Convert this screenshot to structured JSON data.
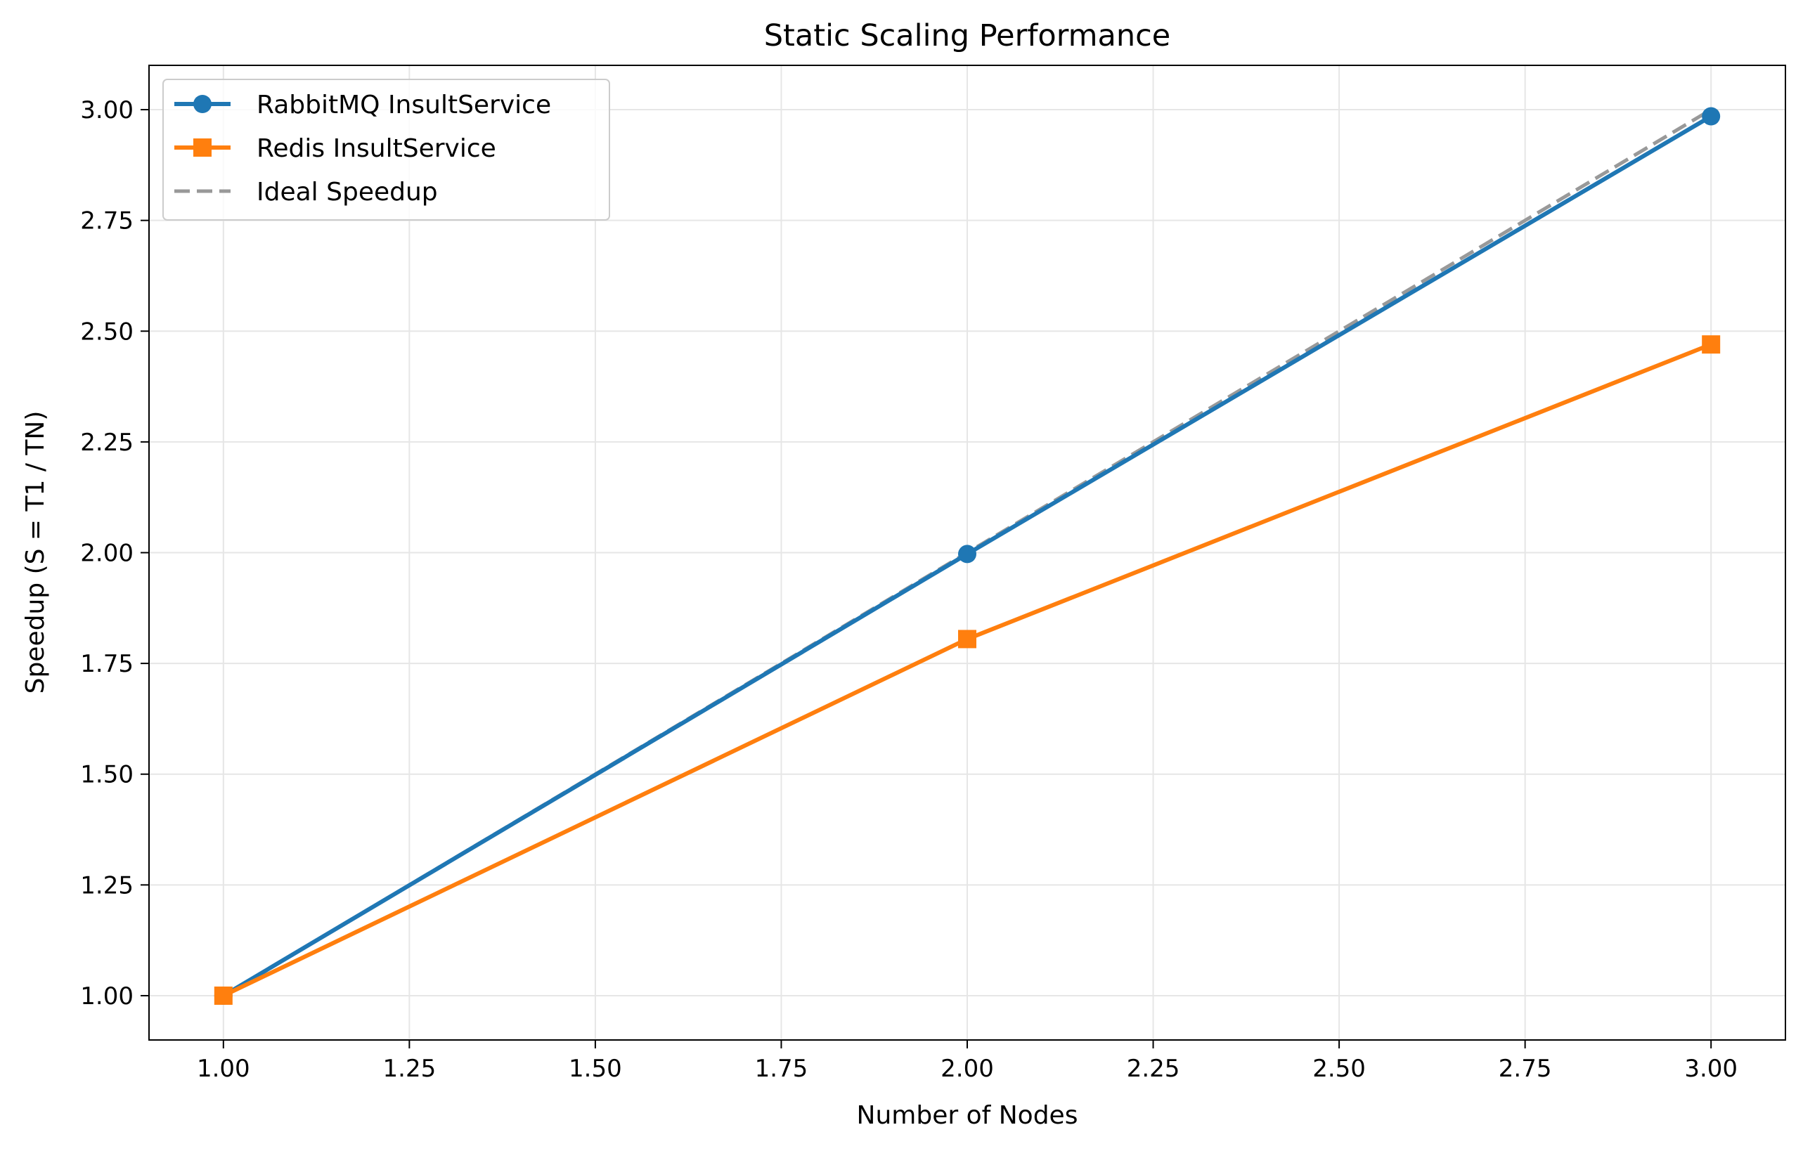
{
  "chart_data": {
    "type": "line",
    "title": "Static Scaling Performance",
    "xlabel": "Number of Nodes",
    "ylabel": "Speedup (S = T1 / TN)",
    "xlim": [
      0.9,
      3.1
    ],
    "ylim": [
      0.9,
      3.1
    ],
    "xticks": [
      1.0,
      1.25,
      1.5,
      1.75,
      2.0,
      2.25,
      2.5,
      2.75,
      3.0
    ],
    "xtick_labels": [
      "1.00",
      "1.25",
      "1.50",
      "1.75",
      "2.00",
      "2.25",
      "2.50",
      "2.75",
      "3.00"
    ],
    "yticks": [
      1.0,
      1.25,
      1.5,
      1.75,
      2.0,
      2.25,
      2.5,
      2.75,
      3.0
    ],
    "ytick_labels": [
      "1.00",
      "1.25",
      "1.50",
      "1.75",
      "2.00",
      "2.25",
      "2.50",
      "2.75",
      "3.00"
    ],
    "grid": true,
    "legend_position": "top-left",
    "series": [
      {
        "name": "RabbitMQ InsultService",
        "x": [
          1,
          2,
          3
        ],
        "y": [
          1.0,
          1.997,
          2.985
        ],
        "color": "#1f77b4",
        "marker": "circle",
        "dash": "solid"
      },
      {
        "name": "Redis InsultService",
        "x": [
          1,
          2,
          3
        ],
        "y": [
          1.0,
          1.805,
          2.47
        ],
        "color": "#ff7f0e",
        "marker": "square",
        "dash": "solid"
      },
      {
        "name": "Ideal Speedup",
        "x": [
          1,
          2,
          3
        ],
        "y": [
          1.0,
          2.0,
          3.0
        ],
        "color": "#999999",
        "marker": "none",
        "dash": "dashed"
      }
    ]
  }
}
